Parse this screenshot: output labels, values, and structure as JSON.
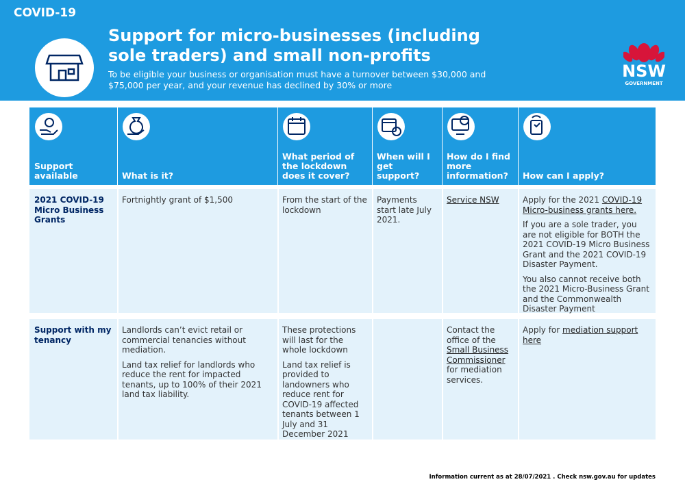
{
  "header": {
    "tag": "COVID-19",
    "title": "Support for micro-businesses (including sole traders) and small non-profits",
    "subtitle": "To be eligible your business or organisation must have a turnover between $30,000 and $75,000 per year, and your revenue has declined by 30% or more",
    "logo": "NSW",
    "logo_sub": "GOVERNMENT"
  },
  "table": {
    "columns": [
      "Support available",
      "What is it?",
      "What period of the lockdown does it cover?",
      "When will I get support?",
      "How do I find more information?",
      "How can I apply?"
    ],
    "rows": [
      {
        "label": "2021 COVID-19 Micro Business Grants",
        "cells": [
          [
            [
              "Fortnightly grant of $1,500"
            ]
          ],
          [
            [
              "From the start of the lockdown"
            ]
          ],
          [
            [
              "Payments start late July 2021."
            ]
          ],
          [
            [
              {
                "link": "Service NSW"
              }
            ]
          ],
          [
            [
              "Apply for the 2021 ",
              {
                "link": "COVID-19 Micro-business grants here."
              }
            ],
            [
              "If you are a sole trader, you are not eligible for BOTH the 2021 COVID-19 Micro Business Grant and the 2021 COVID-19 Disaster Payment."
            ],
            [
              "You also cannot receive both the 2021 Micro-Business Grant and the Commonwealth Disaster Payment"
            ]
          ]
        ]
      },
      {
        "label": "Support with my tenancy",
        "cells": [
          [
            [
              "Landlords can’t evict retail or commercial tenancies without mediation."
            ],
            [
              "Land tax relief for landlords who reduce the rent for impacted tenants, up to 100% of their 2021 land tax liability."
            ]
          ],
          [
            [
              "These protections will last for the whole lockdown"
            ],
            [
              "Land tax relief is provided to landowners who reduce rent for COVID-19 affected tenants between 1 July and 31 December 2021"
            ]
          ],
          [],
          [
            [
              "Contact the office of the ",
              {
                "link": "Small Business Commissioner"
              },
              " for mediation services."
            ]
          ],
          [
            [
              "Apply for ",
              {
                "link": "mediation support here"
              }
            ]
          ]
        ]
      }
    ]
  },
  "footer": "Information current as at 28/07/2021 . Check nsw.gov.au for updates"
}
